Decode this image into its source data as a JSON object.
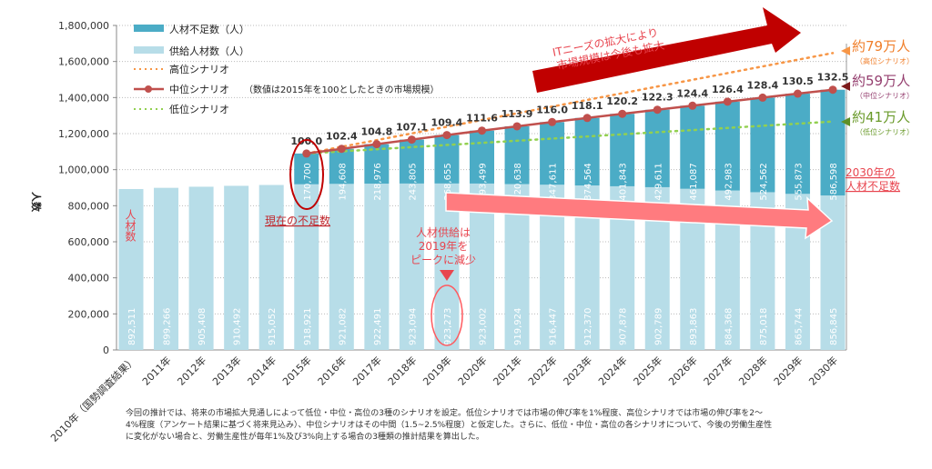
{
  "chart_data": {
    "type": "bar",
    "stacked": true,
    "ylabel": "人数",
    "ylim": [
      0,
      1800000
    ],
    "yticks": [
      "0",
      "200,000",
      "400,000",
      "600,000",
      "800,000",
      "1,000,000",
      "1,200,000",
      "1,400,000",
      "1,600,000",
      "1,800,000"
    ],
    "grid": true,
    "legend_position": "top-left",
    "categories": [
      "2010年（国勢調査結果）",
      "2011年",
      "2012年",
      "2013年",
      "2014年",
      "2015年",
      "2016年",
      "2017年",
      "2018年",
      "2019年",
      "2020年",
      "2021年",
      "2022年",
      "2023年",
      "2024年",
      "2025年",
      "2026年",
      "2027年",
      "2028年",
      "2029年",
      "2030年"
    ],
    "series": [
      {
        "name": "供給人材数（人）",
        "color": "#b7dde8",
        "values": [
          892511,
          899266,
          905408,
          910492,
          915052,
          918921,
          921082,
          922491,
          923094,
          923273,
          923002,
          919924,
          916447,
          912370,
          907878,
          902789,
          893863,
          884368,
          875018,
          865744,
          856845
        ],
        "labels": [
          "892,511",
          "899,266",
          "905,408",
          "910,492",
          "915,052",
          "918,921",
          "921,082",
          "922,491",
          "923,094",
          "923,273",
          "923,002",
          "919,924",
          "916,447",
          "912,370",
          "907,878",
          "902,789",
          "893,863",
          "884,368",
          "875,018",
          "865,744",
          "856,845"
        ]
      },
      {
        "name": "人材不足数（人）",
        "color": "#4bacc6",
        "values": [
          null,
          null,
          null,
          null,
          null,
          170700,
          194608,
          218976,
          243805,
          268655,
          293499,
          320638,
          347611,
          374564,
          401843,
          429611,
          461087,
          492983,
          524562,
          555873,
          586598
        ],
        "labels": [
          "",
          "",
          "",
          "",
          "",
          "170,700",
          "194,608",
          "218,976",
          "243,805",
          "268,655",
          "293,499",
          "320,638",
          "347,611",
          "374,564",
          "401,843",
          "429,611",
          "461,087",
          "492,983",
          "524,562",
          "555,873",
          "586,598"
        ]
      }
    ],
    "scenarios": [
      {
        "name": "高位シナリオ",
        "color": "#f79646",
        "style": "dotted",
        "start": {
          "year": "2015年",
          "value": 1089621
        },
        "end": {
          "year": "2030年",
          "value": 1647000
        }
      },
      {
        "name": "中位シナリオ",
        "note": "（数値は2015年を100としたときの市場規模）",
        "color": "#c0504d",
        "style": "solid-markers",
        "index_labels": [
          "100.0",
          "102.4",
          "104.8",
          "107.1",
          "109.4",
          "111.6",
          "113.9",
          "116.0",
          "118.1",
          "120.2",
          "122.3",
          "124.4",
          "126.4",
          "128.4",
          "130.5",
          "132.5"
        ]
      },
      {
        "name": "低位シナリオ",
        "color": "#92d050",
        "style": "dotted",
        "start": {
          "year": "2015年",
          "value": 1089621
        },
        "end": {
          "year": "2030年",
          "value": 1267000
        }
      }
    ],
    "legend": {
      "shortage": "人材不足数（人）",
      "supply": "供給人材数（人）",
      "high": "高位シナリオ",
      "mid": "中位シナリオ",
      "mid_note": "（数値は2015年を100としたときの市場規模）",
      "low": "低位シナリオ"
    },
    "annotations": {
      "supply_vertical": "人材数",
      "current_shortage": "現在の不足数",
      "peak_line1": "人材供給は",
      "peak_line2": "2019年を",
      "peak_line3": "ピークに減少",
      "market_line1": "ITニーズの拡大により",
      "market_line2": "市場規模は今後も拡大",
      "high_value": "約79万人",
      "high_label": "（高位シナリオ）",
      "mid_value": "約59万人",
      "mid_label": "（中位シナリオ）",
      "low_value": "約41万人",
      "low_label": "（低位シナリオ）",
      "shortage2030_line1": "2030年の",
      "shortage2030_line2": "人材不足数"
    },
    "footnote": [
      "今回の推計では、将来の市場拡大見通しによって低位・中位・高位の3種のシナリオを設定。低位シナリオでは市場の伸び率を1%程度、高位シナリオでは市場の伸び率を2～",
      "4%程度（アンケート結果に基づく将来見込み）、中位シナリオはその中間（1.5~2.5%程度）と仮定した。さらに、低位・中位・高位の各シナリオについて、今後の労働生産性",
      "に変化がない場合と、労働生産性が毎年1%及び3%向上する場合の3種類の推計結果を算出した。"
    ]
  }
}
